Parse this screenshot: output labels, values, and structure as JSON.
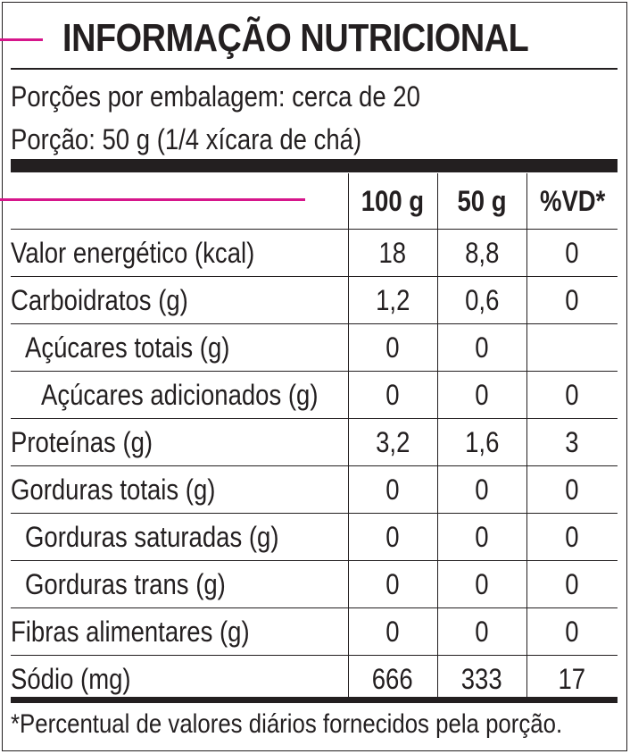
{
  "title": "INFORMAÇÃO NUTRICIONAL",
  "servings_per_package": "Porções por embalagem: cerca de 20",
  "serving_size": "Porção: 50 g (1/4 xícara de chá)",
  "columns": [
    "100 g",
    "50 g",
    "%VD*"
  ],
  "rows": [
    {
      "label": "Valor energético (kcal)",
      "v100": "18",
      "v50": "8,8",
      "vd": "0",
      "indent": 0
    },
    {
      "label": "Carboidratos (g)",
      "v100": "1,2",
      "v50": "0,6",
      "vd": "0",
      "indent": 0
    },
    {
      "label": "Açúcares totais (g)",
      "v100": "0",
      "v50": "0",
      "vd": "",
      "indent": 1
    },
    {
      "label": "Açúcares adicionados (g)",
      "v100": "0",
      "v50": "0",
      "vd": "0",
      "indent": 2
    },
    {
      "label": "Proteínas (g)",
      "v100": "3,2",
      "v50": "1,6",
      "vd": "3",
      "indent": 0
    },
    {
      "label": "Gorduras totais (g)",
      "v100": "0",
      "v50": "0",
      "vd": "0",
      "indent": 0
    },
    {
      "label": "Gorduras saturadas (g)",
      "v100": "0",
      "v50": "0",
      "vd": "0",
      "indent": 1
    },
    {
      "label": "Gorduras trans (g)",
      "v100": "0",
      "v50": "0",
      "vd": "0",
      "indent": 1
    },
    {
      "label": "Fibras alimentares (g)",
      "v100": "0",
      "v50": "0",
      "vd": "0",
      "indent": 0
    },
    {
      "label": "Sódio (mg)",
      "v100": "666",
      "v50": "333",
      "vd": "17",
      "indent": 0
    }
  ],
  "footnote": "*Percentual de valores diários fornecidos pela porção.",
  "colors": {
    "accent": "#d6168b",
    "text": "#231f20"
  }
}
